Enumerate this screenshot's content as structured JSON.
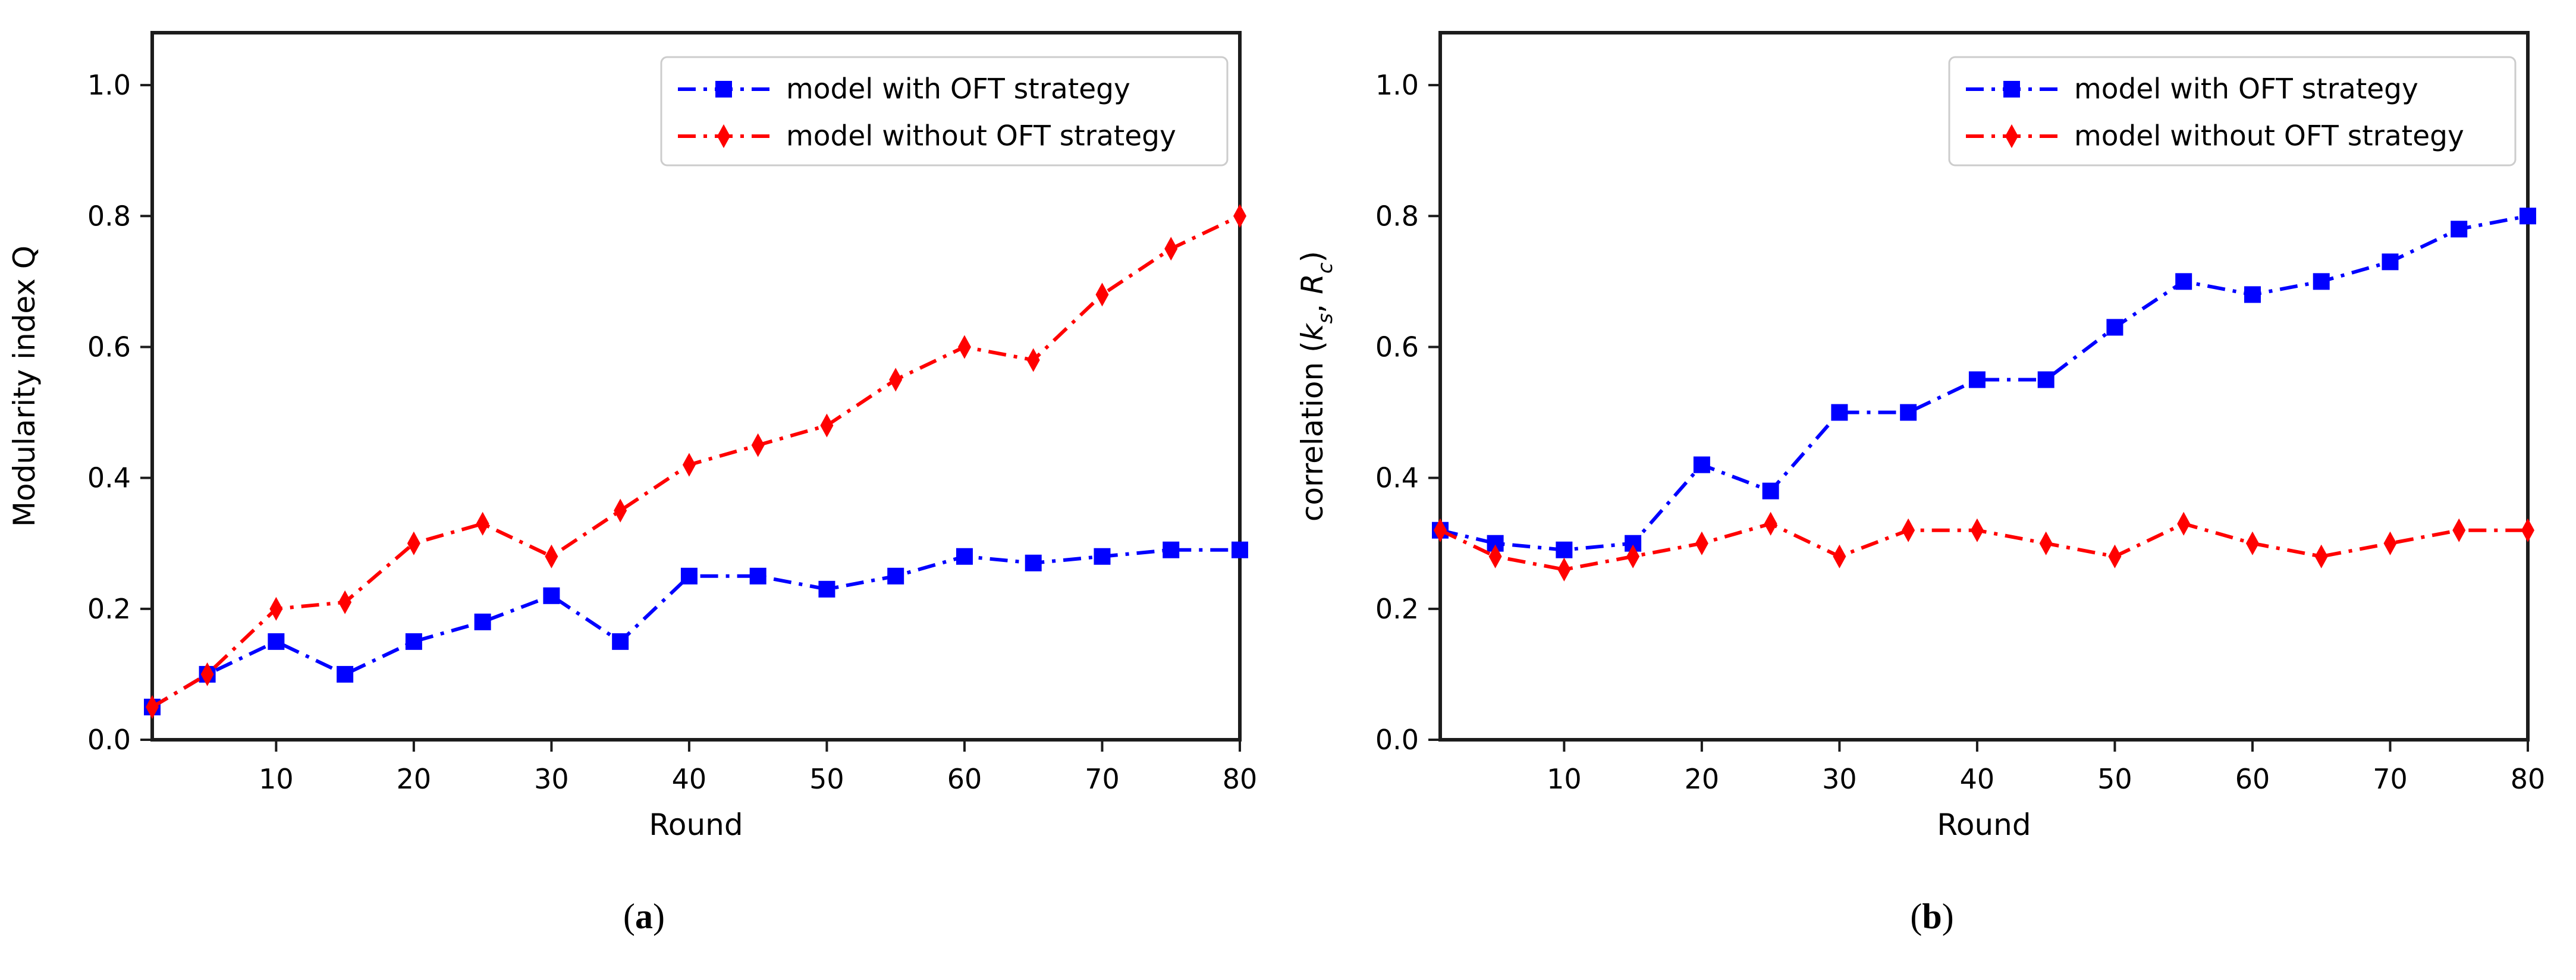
{
  "style": {
    "background": "#ffffff",
    "axis_color": "#1c1c1c",
    "text_color": "#000000",
    "legend_border_color": "#cccccc",
    "legend_fill": "#ffffff",
    "blue_accent": "#0000ff",
    "red_accent": "#ff0000"
  },
  "chart_data": [
    {
      "type": "line",
      "caption": {
        "open": "(",
        "letter": "a",
        "close": ")"
      },
      "xlabel": "Round",
      "ylabel": "Modularity index Q",
      "ylabel_parts": [
        {
          "t": "Modularity index Q"
        }
      ],
      "xlim": [
        1,
        80
      ],
      "ylim": [
        0,
        1.08
      ],
      "grid": false,
      "legend": {
        "position": "upper right"
      },
      "xticks": [
        10,
        20,
        30,
        40,
        50,
        60,
        70,
        80
      ],
      "yticks": [
        0.0,
        0.2,
        0.4,
        0.6,
        0.8,
        1.0
      ],
      "ytick_labels": [
        "0.0",
        "0.2",
        "0.4",
        "0.6",
        "0.8",
        "1.0"
      ],
      "x": [
        1,
        5,
        10,
        15,
        20,
        25,
        30,
        35,
        40,
        45,
        50,
        55,
        60,
        65,
        70,
        75,
        80
      ],
      "series": [
        {
          "name": "model with OFT strategy",
          "color": "#0000ff",
          "marker": "square",
          "linestyle": "dashdot",
          "values": [
            0.05,
            0.1,
            0.15,
            0.1,
            0.15,
            0.18,
            0.22,
            0.15,
            0.25,
            0.25,
            0.23,
            0.25,
            0.28,
            0.27,
            0.28,
            0.29,
            0.29
          ]
        },
        {
          "name": "model without OFT strategy",
          "color": "#ff0000",
          "marker": "thin-diamond",
          "linestyle": "dashdot",
          "values": [
            0.05,
            0.1,
            0.2,
            0.21,
            0.3,
            0.33,
            0.28,
            0.35,
            0.42,
            0.45,
            0.48,
            0.55,
            0.6,
            0.58,
            0.68,
            0.75,
            0.8
          ]
        }
      ]
    },
    {
      "type": "line",
      "caption": {
        "open": "(",
        "letter": "b",
        "close": ")"
      },
      "xlabel": "Round",
      "ylabel": "correlation (ks, Rc)",
      "ylabel_parts": [
        {
          "t": "correlation ("
        },
        {
          "t": "k",
          "italic": true
        },
        {
          "t": "s",
          "sub": true,
          "italic": true
        },
        {
          "t": ", "
        },
        {
          "t": "R",
          "italic": true
        },
        {
          "t": "c",
          "sub": true,
          "italic": true
        },
        {
          "t": ")"
        }
      ],
      "xlim": [
        1,
        80
      ],
      "ylim": [
        0,
        1.08
      ],
      "grid": false,
      "legend": {
        "position": "upper right"
      },
      "xticks": [
        10,
        20,
        30,
        40,
        50,
        60,
        70,
        80
      ],
      "yticks": [
        0.0,
        0.2,
        0.4,
        0.6,
        0.8,
        1.0
      ],
      "ytick_labels": [
        "0.0",
        "0.2",
        "0.4",
        "0.6",
        "0.8",
        "1.0"
      ],
      "x": [
        1,
        5,
        10,
        15,
        20,
        25,
        30,
        35,
        40,
        45,
        50,
        55,
        60,
        65,
        70,
        75,
        80
      ],
      "series": [
        {
          "name": "model with OFT strategy",
          "color": "#0000ff",
          "marker": "square",
          "linestyle": "dashdot",
          "values": [
            0.32,
            0.3,
            0.29,
            0.3,
            0.42,
            0.38,
            0.5,
            0.5,
            0.55,
            0.55,
            0.63,
            0.7,
            0.68,
            0.7,
            0.73,
            0.78,
            0.8
          ]
        },
        {
          "name": "model without OFT strategy",
          "color": "#ff0000",
          "marker": "thin-diamond",
          "linestyle": "dashdot",
          "values": [
            0.32,
            0.28,
            0.26,
            0.28,
            0.3,
            0.33,
            0.28,
            0.32,
            0.32,
            0.3,
            0.28,
            0.33,
            0.3,
            0.28,
            0.3,
            0.32,
            0.32
          ]
        }
      ]
    }
  ]
}
